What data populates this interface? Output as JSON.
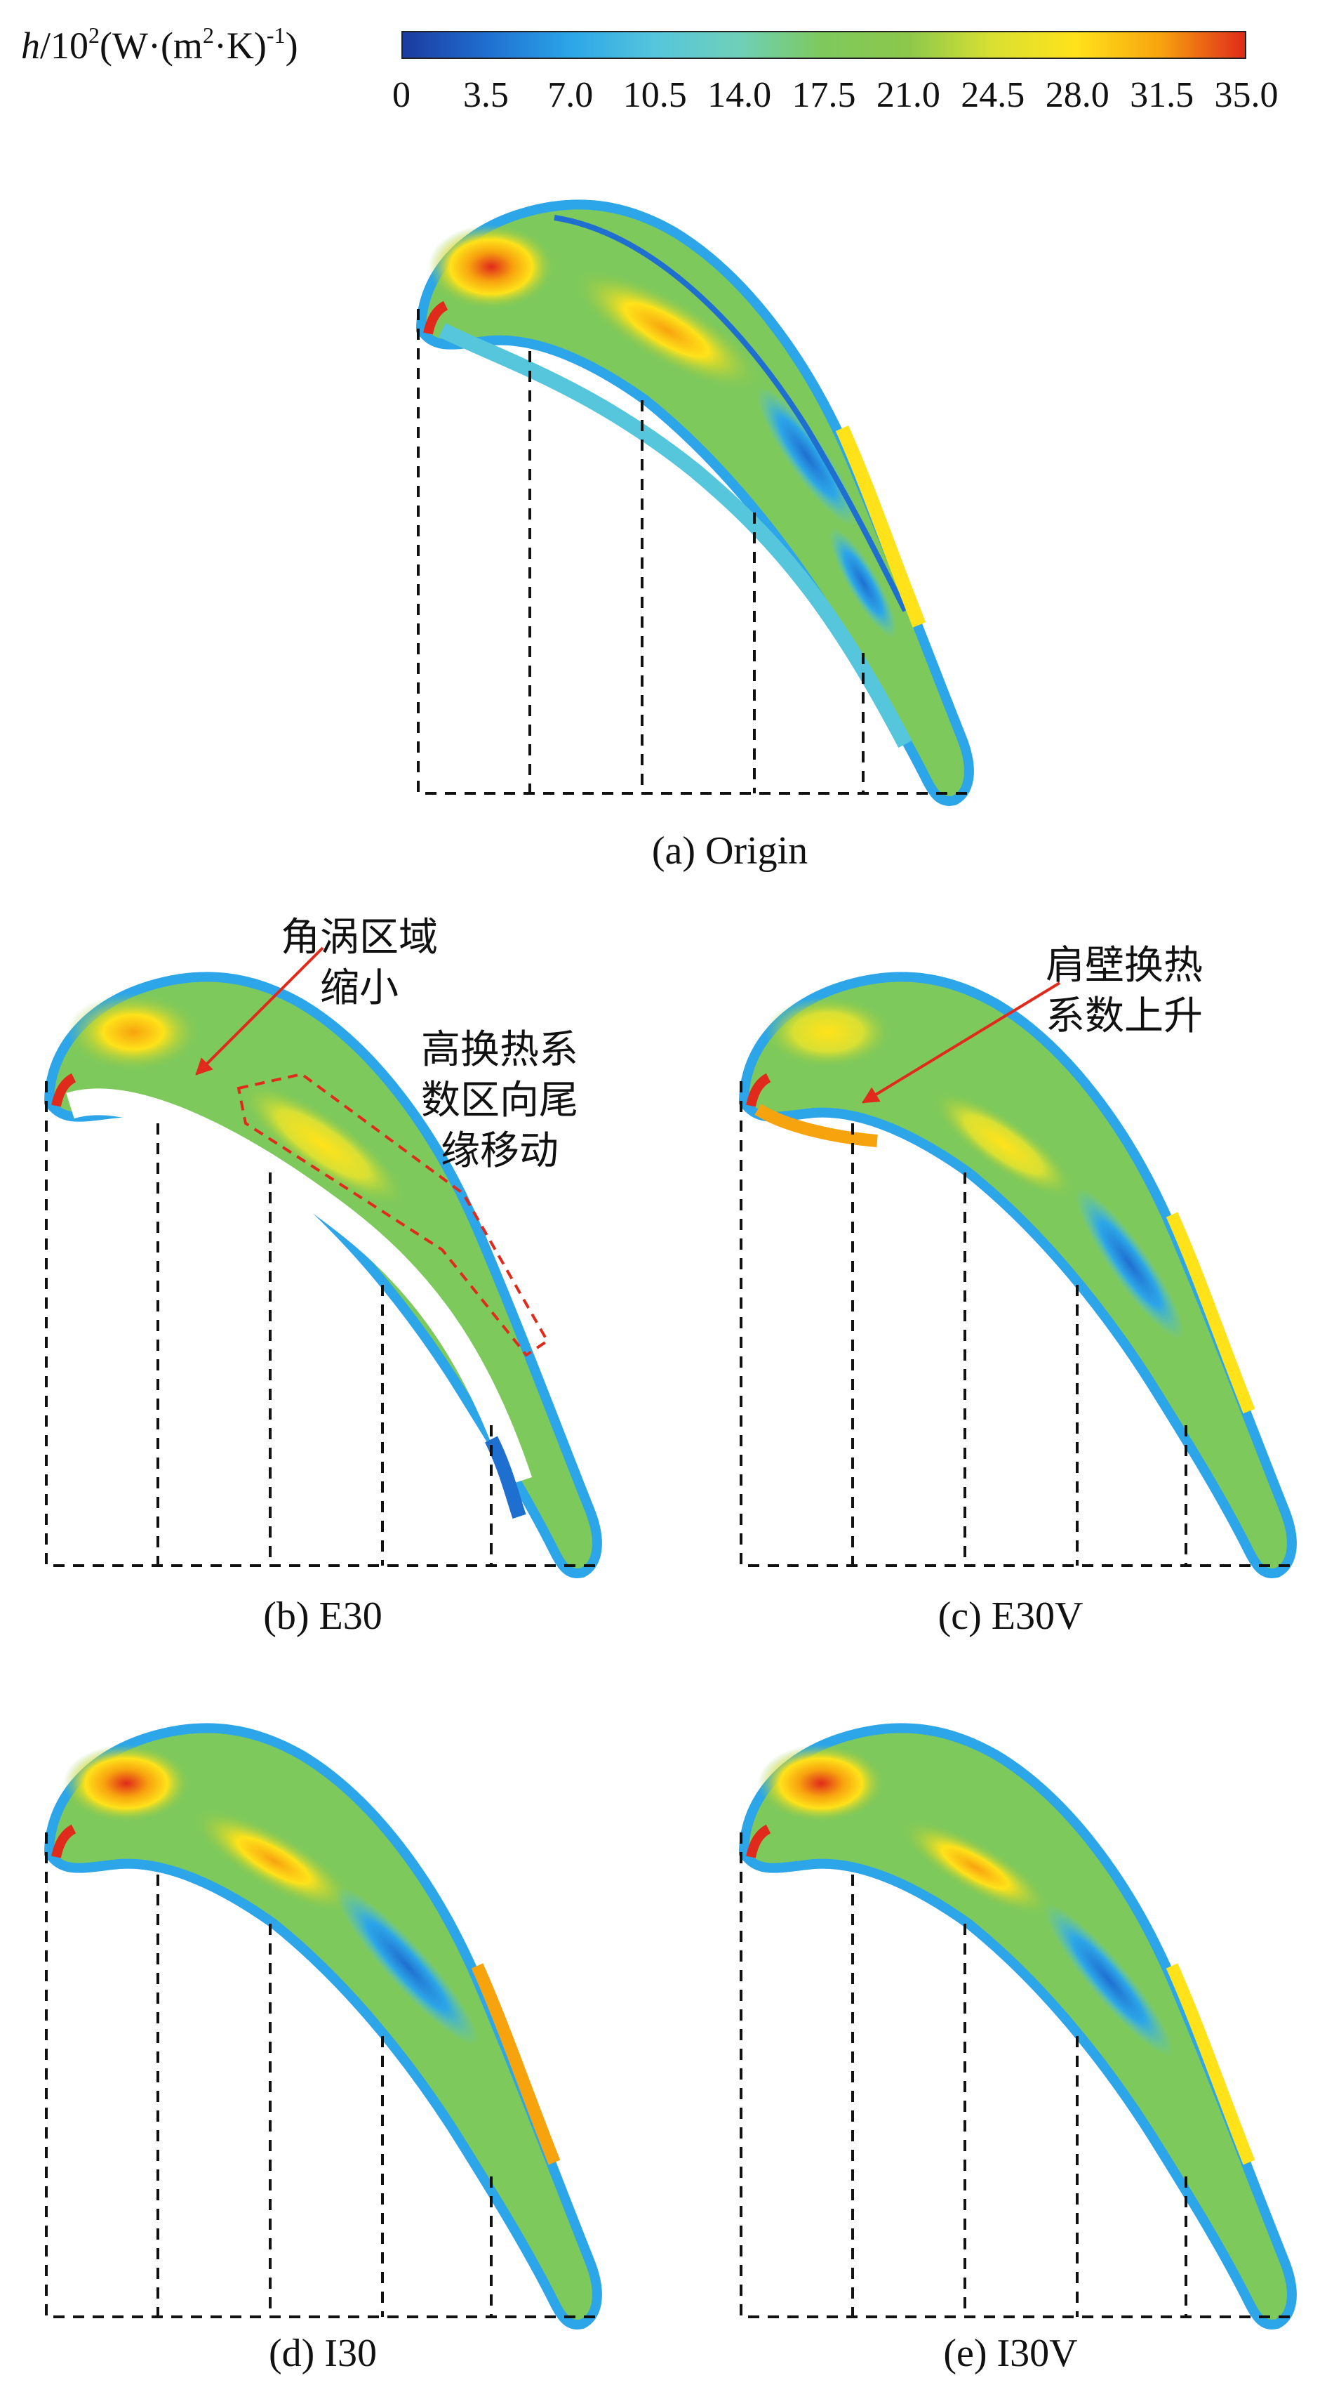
{
  "colorbar": {
    "label_var": "h",
    "label_prefix": "/10",
    "label_exp": "2",
    "label_unit_a": "(W·(m",
    "label_unit_exp1": "2",
    "label_unit_b": "·K)",
    "label_unit_exp2": "-1",
    "label_unit_c": ")",
    "ticks": [
      "0",
      "3.5",
      "7.0",
      "10.5",
      "14.0",
      "17.5",
      "21.0",
      "24.5",
      "28.0",
      "31.5",
      "35.0"
    ],
    "colors": [
      "#1c3aa0",
      "#1f6fd0",
      "#2ca6e8",
      "#55c6dc",
      "#6fd0b8",
      "#7ec95c",
      "#8cc84b",
      "#d9e033",
      "#ffe21a",
      "#f7a30e",
      "#e02a1b"
    ]
  },
  "panels": [
    {
      "id": "a",
      "caption": "(a) Origin"
    },
    {
      "id": "b",
      "caption": "(b) E30"
    },
    {
      "id": "c",
      "caption": "(c) E30V"
    },
    {
      "id": "d",
      "caption": "(d) I30"
    },
    {
      "id": "e",
      "caption": "(e) I30V"
    }
  ],
  "annotations": {
    "b_corner_vortex": "角涡区域\n缩小",
    "b_high_htc": "高换热系\n数区向尾\n缘移动",
    "c_shoulder": "肩壁换热\n系数上升"
  }
}
